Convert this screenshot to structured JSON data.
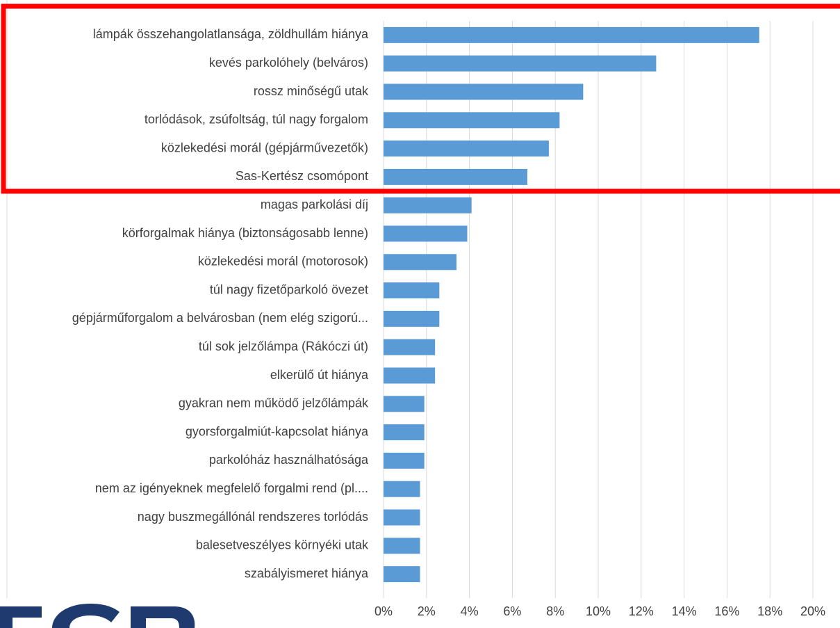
{
  "chart_data": {
    "type": "barh",
    "color": "#5b9bd5",
    "grid": true,
    "categories": [
      "lámpák összehangolatlansága, zöldhullám hiánya",
      "kevés parkolóhely (belváros)",
      "rossz minőségű utak",
      "torlódások, zsúfoltság, túl nagy forgalom",
      "közlekedési morál (gépjárművezetők)",
      "Sas-Kertész csomópont",
      "magas parkolási díj",
      "körforgalmak hiánya (biztonságosabb lenne)",
      "közlekedési morál (motorosok)",
      "túl nagy fizetőparkoló övezet",
      "gépjárműforgalom a belvárosban (nem elég szigorú...",
      "túl sok jelzőlámpa (Rákóczi út)",
      "elkerülő út hiánya",
      "gyakran nem működő jelzőlámpák",
      "gyorsforgalmiút-kapcsolat hiánya",
      "parkolóház használhatósága",
      "nem az igényeknek megfelelő forgalmi rend (pl....",
      "nagy buszmegállónál rendszeres torlódás",
      "balesetveszélyes környéki utak",
      "szabályismeret hiánya"
    ],
    "values": [
      17.5,
      12.7,
      9.3,
      8.2,
      7.7,
      6.7,
      4.1,
      3.9,
      3.4,
      2.6,
      2.6,
      2.4,
      2.4,
      1.9,
      1.9,
      1.9,
      1.7,
      1.7,
      1.7,
      1.7
    ],
    "xlim": [
      0,
      20
    ],
    "xticks": [
      {
        "value": 0,
        "label": "0%"
      },
      {
        "value": 2,
        "label": "2%"
      },
      {
        "value": 4,
        "label": "4%"
      },
      {
        "value": 6,
        "label": "6%"
      },
      {
        "value": 8,
        "label": "8%"
      },
      {
        "value": 10,
        "label": "10%"
      },
      {
        "value": 12,
        "label": "12%"
      },
      {
        "value": 14,
        "label": "14%"
      },
      {
        "value": 16,
        "label": "16%"
      },
      {
        "value": 18,
        "label": "18%"
      },
      {
        "value": 20,
        "label": "20%"
      }
    ]
  }
}
